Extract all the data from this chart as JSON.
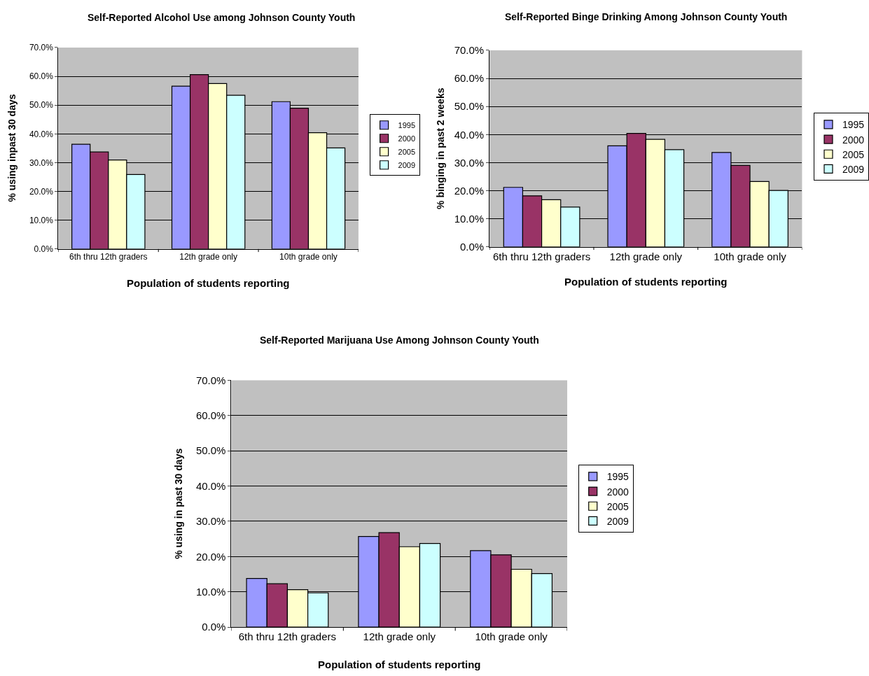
{
  "chart_data": [
    {
      "type": "bar",
      "title": "Self-Reported Alcohol Use among Johnson County Youth",
      "xlabel": "Population of students reporting",
      "ylabel": "% using inpast 30 days",
      "categories": [
        "6th thru 12th graders",
        "12th grade only",
        "10th grade only"
      ],
      "series": [
        {
          "name": "1995",
          "color": "#9999ff",
          "values": [
            36.4,
            56.6,
            51.2
          ]
        },
        {
          "name": "2000",
          "color": "#993366",
          "values": [
            33.7,
            60.6,
            48.9
          ]
        },
        {
          "name": "2005",
          "color": "#ffffcc",
          "values": [
            30.9,
            57.5,
            40.4
          ]
        },
        {
          "name": "2009",
          "color": "#ccffff",
          "values": [
            25.9,
            53.4,
            35.1
          ]
        }
      ],
      "ylim": [
        0,
        70
      ],
      "yticks": [
        {
          "value": 0,
          "label": "0.0%"
        },
        {
          "value": 10,
          "label": "10.0%"
        },
        {
          "value": 20,
          "label": "20.0%"
        },
        {
          "value": 30,
          "label": "30.0%"
        },
        {
          "value": 40,
          "label": "40.0%"
        },
        {
          "value": 50,
          "label": "50.0%"
        },
        {
          "value": 60,
          "label": "60.0%"
        },
        {
          "value": 70,
          "label": "70.0%"
        }
      ],
      "grid": "y",
      "legend": "right"
    },
    {
      "type": "bar",
      "title": "Self-Reported Binge Drinking Among Johnson County Youth",
      "xlabel": "Population of students reporting",
      "ylabel": "% binging in past 2 weeks",
      "categories": [
        "6th thru 12th graders",
        "12th grade only",
        "10th grade only"
      ],
      "series": [
        {
          "name": "1995",
          "color": "#9999ff",
          "values": [
            21.2,
            36.0,
            33.6
          ]
        },
        {
          "name": "2000",
          "color": "#993366",
          "values": [
            18.2,
            40.4,
            29.0
          ]
        },
        {
          "name": "2005",
          "color": "#ffffcc",
          "values": [
            16.8,
            38.3,
            23.3
          ]
        },
        {
          "name": "2009",
          "color": "#ccffff",
          "values": [
            14.2,
            34.6,
            20.1
          ]
        }
      ],
      "ylim": [
        0,
        70
      ],
      "yticks": [
        {
          "value": 0,
          "label": "0.0%"
        },
        {
          "value": 10,
          "label": "10.0%"
        },
        {
          "value": 20,
          "label": "20.0%"
        },
        {
          "value": 30,
          "label": "30.0%"
        },
        {
          "value": 40,
          "label": "40.0%"
        },
        {
          "value": 50,
          "label": "50.0%"
        },
        {
          "value": 60,
          "label": "60.0%"
        },
        {
          "value": 70,
          "label": "70.0%"
        }
      ],
      "grid": "y",
      "legend": "right"
    },
    {
      "type": "bar",
      "title": "Self-Reported Marijuana Use Among Johnson County Youth",
      "xlabel": "Population of students reporting",
      "ylabel": "% using in past 30 days",
      "categories": [
        "6th thru 12th graders",
        "12th grade only",
        "10th grade only"
      ],
      "series": [
        {
          "name": "1995",
          "color": "#9999ff",
          "values": [
            13.8,
            25.7,
            21.7
          ]
        },
        {
          "name": "2000",
          "color": "#993366",
          "values": [
            12.3,
            26.8,
            20.5
          ]
        },
        {
          "name": "2005",
          "color": "#ffffcc",
          "values": [
            10.6,
            22.8,
            16.4
          ]
        },
        {
          "name": "2009",
          "color": "#ccffff",
          "values": [
            9.7,
            23.7,
            15.2
          ]
        }
      ],
      "ylim": [
        0,
        70
      ],
      "yticks": [
        {
          "value": 0,
          "label": "0.0%"
        },
        {
          "value": 10,
          "label": "10.0%"
        },
        {
          "value": 20,
          "label": "20.0%"
        },
        {
          "value": 30,
          "label": "30.0%"
        },
        {
          "value": 40,
          "label": "40.0%"
        },
        {
          "value": 50,
          "label": "50.0%"
        },
        {
          "value": 60,
          "label": "60.0%"
        },
        {
          "value": 70,
          "label": "70.0%"
        }
      ],
      "grid": "y",
      "legend": "right"
    }
  ]
}
